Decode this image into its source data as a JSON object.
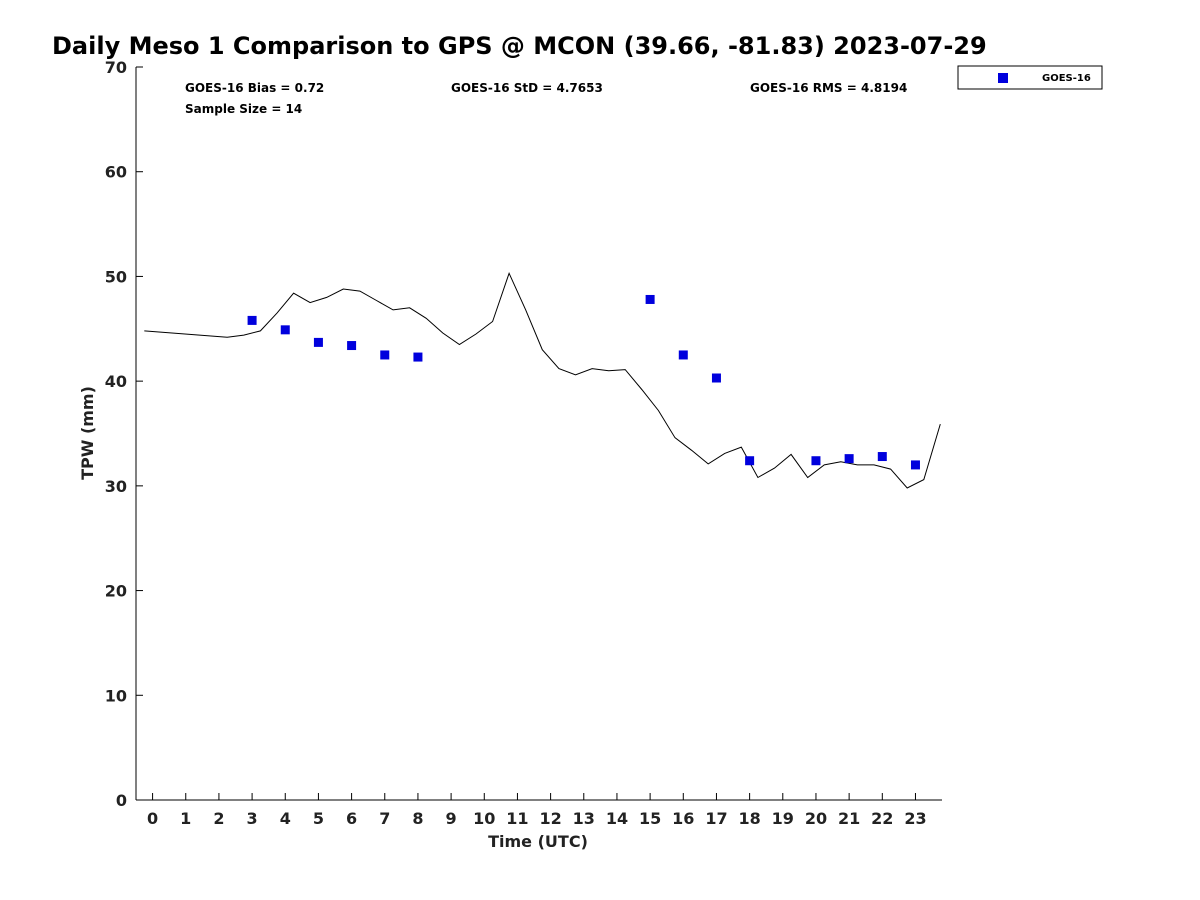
{
  "chart_data": {
    "type": "scatter",
    "title": "Daily Meso 1 Comparison to GPS @ MCON (39.66, -81.83) 2023-07-29",
    "xlabel": "Time (UTC)",
    "ylabel": "TPW (mm)",
    "xlim": [
      -0.5,
      23.8
    ],
    "ylim": [
      0,
      70
    ],
    "x_ticks": [
      0,
      1,
      2,
      3,
      4,
      5,
      6,
      7,
      8,
      9,
      10,
      11,
      12,
      13,
      14,
      15,
      16,
      17,
      18,
      19,
      20,
      21,
      22,
      23
    ],
    "x_tick_labels": [
      "0",
      "1",
      "2",
      "3",
      "4",
      "5",
      "6",
      "7",
      "8",
      "9",
      "10",
      "11",
      "12",
      "13",
      "14",
      "15",
      "16",
      "17",
      "18",
      "19",
      "20",
      "21",
      "22",
      "23"
    ],
    "y_ticks": [
      0,
      10,
      20,
      30,
      40,
      50,
      60,
      70
    ],
    "y_tick_labels": [
      "0",
      "10",
      "20",
      "30",
      "40",
      "50",
      "60",
      "70"
    ],
    "grid": false,
    "legend_position": "outside-top-right",
    "stats": {
      "bias": "GOES-16 Bias = 0.72",
      "std": "GOES-16 StD = 4.7653",
      "rms": "GOES-16 RMS = 4.8194",
      "sample_size": "Sample Size = 14"
    },
    "series": [
      {
        "name": "GOES-16",
        "type": "scatter",
        "marker": "square",
        "color": "#0000dd",
        "x": [
          3,
          4,
          5,
          6,
          7,
          8,
          15,
          16,
          17,
          18,
          20,
          21,
          22,
          23
        ],
        "y": [
          45.8,
          44.9,
          43.7,
          43.4,
          42.5,
          42.3,
          47.8,
          42.5,
          40.3,
          32.4,
          32.4,
          32.6,
          32.8,
          32.0
        ]
      },
      {
        "type": "line",
        "color": "#000000",
        "x": [
          -0.25,
          2.25,
          2.75,
          3.25,
          3.75,
          4.25,
          4.75,
          5.25,
          5.75,
          6.25,
          6.75,
          7.25,
          7.75,
          8.25,
          8.75,
          9.25,
          9.75,
          10.25,
          10.75,
          11.25,
          11.75,
          12.25,
          12.75,
          13.25,
          13.75,
          14.25,
          14.75,
          15.25,
          15.75,
          16.25,
          16.75,
          17.25,
          17.75,
          18.25,
          18.75,
          19.25,
          19.75,
          20.25,
          20.75,
          21.25,
          21.75,
          22.25,
          22.75,
          23.25,
          23.75
        ],
        "y": [
          44.8,
          44.2,
          44.4,
          44.8,
          46.5,
          48.4,
          47.5,
          48.0,
          48.8,
          48.6,
          47.7,
          46.8,
          47.0,
          46.0,
          44.6,
          43.5,
          44.5,
          45.7,
          50.3,
          46.8,
          43.0,
          41.2,
          40.6,
          41.2,
          41.0,
          41.1,
          39.2,
          37.2,
          34.6,
          33.4,
          32.1,
          33.1,
          33.7,
          30.8,
          31.7,
          33.0,
          30.8,
          32.0,
          32.3,
          32.0,
          32.0,
          31.6,
          29.8,
          30.6,
          35.9
        ]
      }
    ]
  }
}
